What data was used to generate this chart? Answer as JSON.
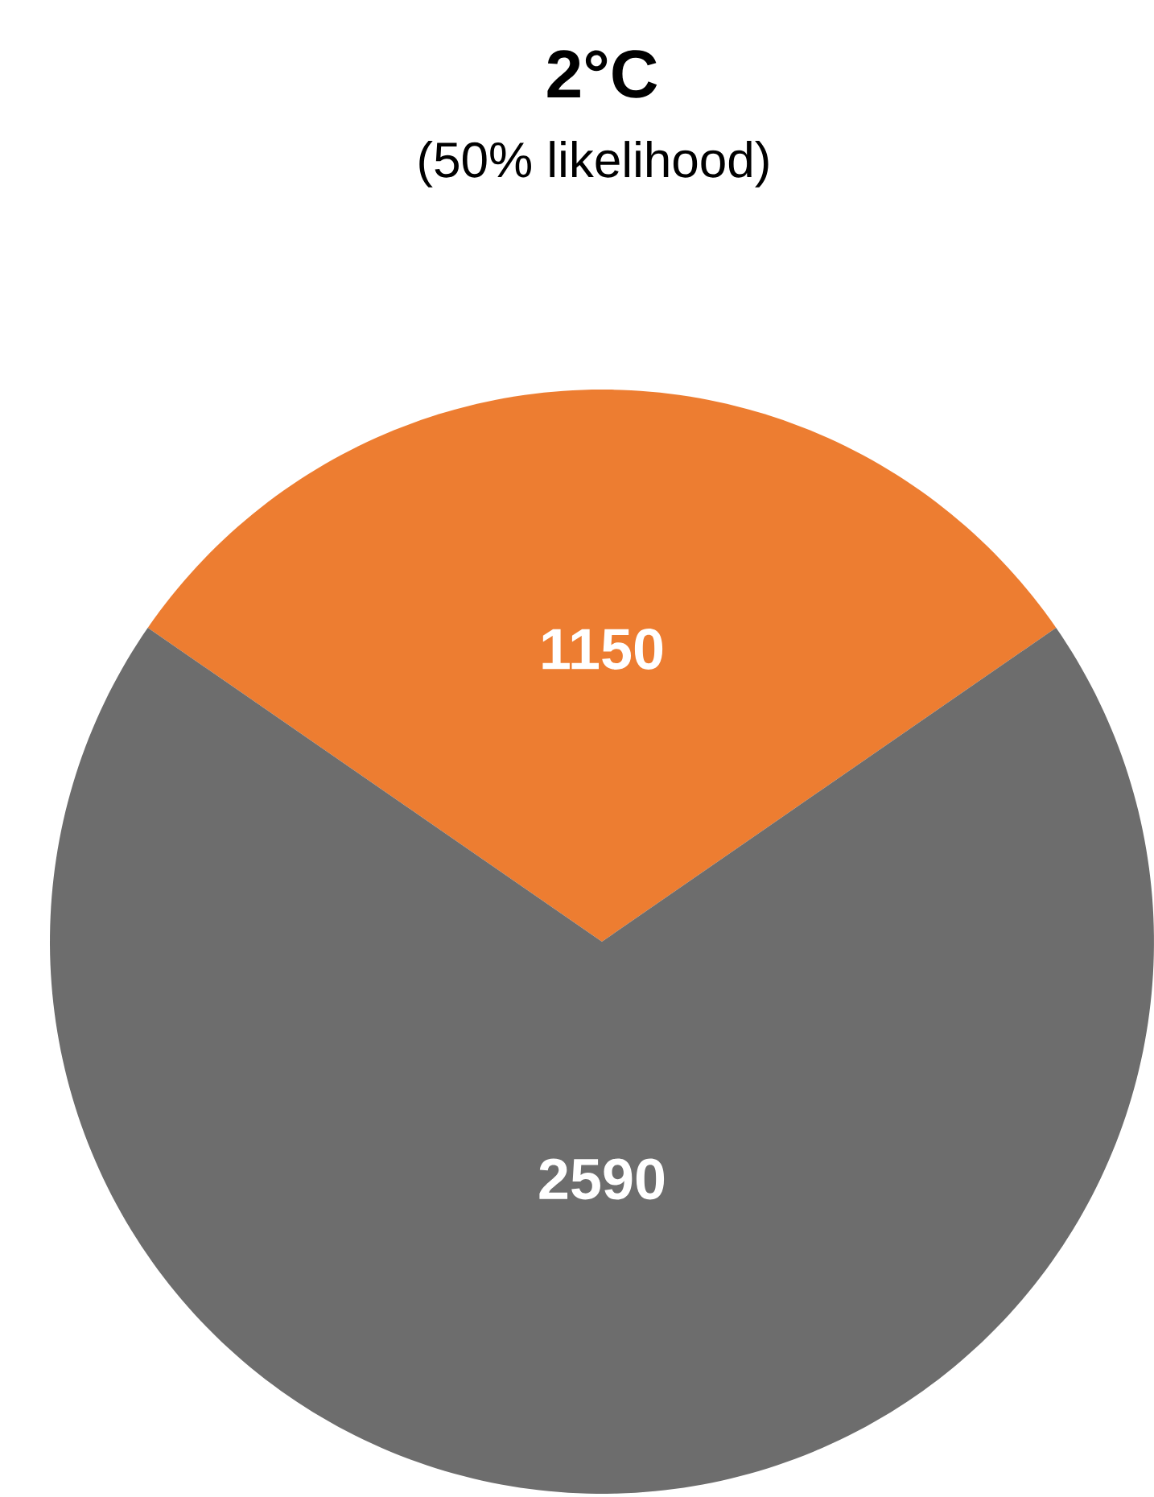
{
  "chart_data": {
    "type": "pie",
    "title": "2°C",
    "subtitle": "(50% likelihood)",
    "categories": [
      null,
      null
    ],
    "values": [
      1150,
      2590
    ],
    "colors": [
      "#ed7d31",
      "#6d6d6d"
    ],
    "data_labels": true
  }
}
